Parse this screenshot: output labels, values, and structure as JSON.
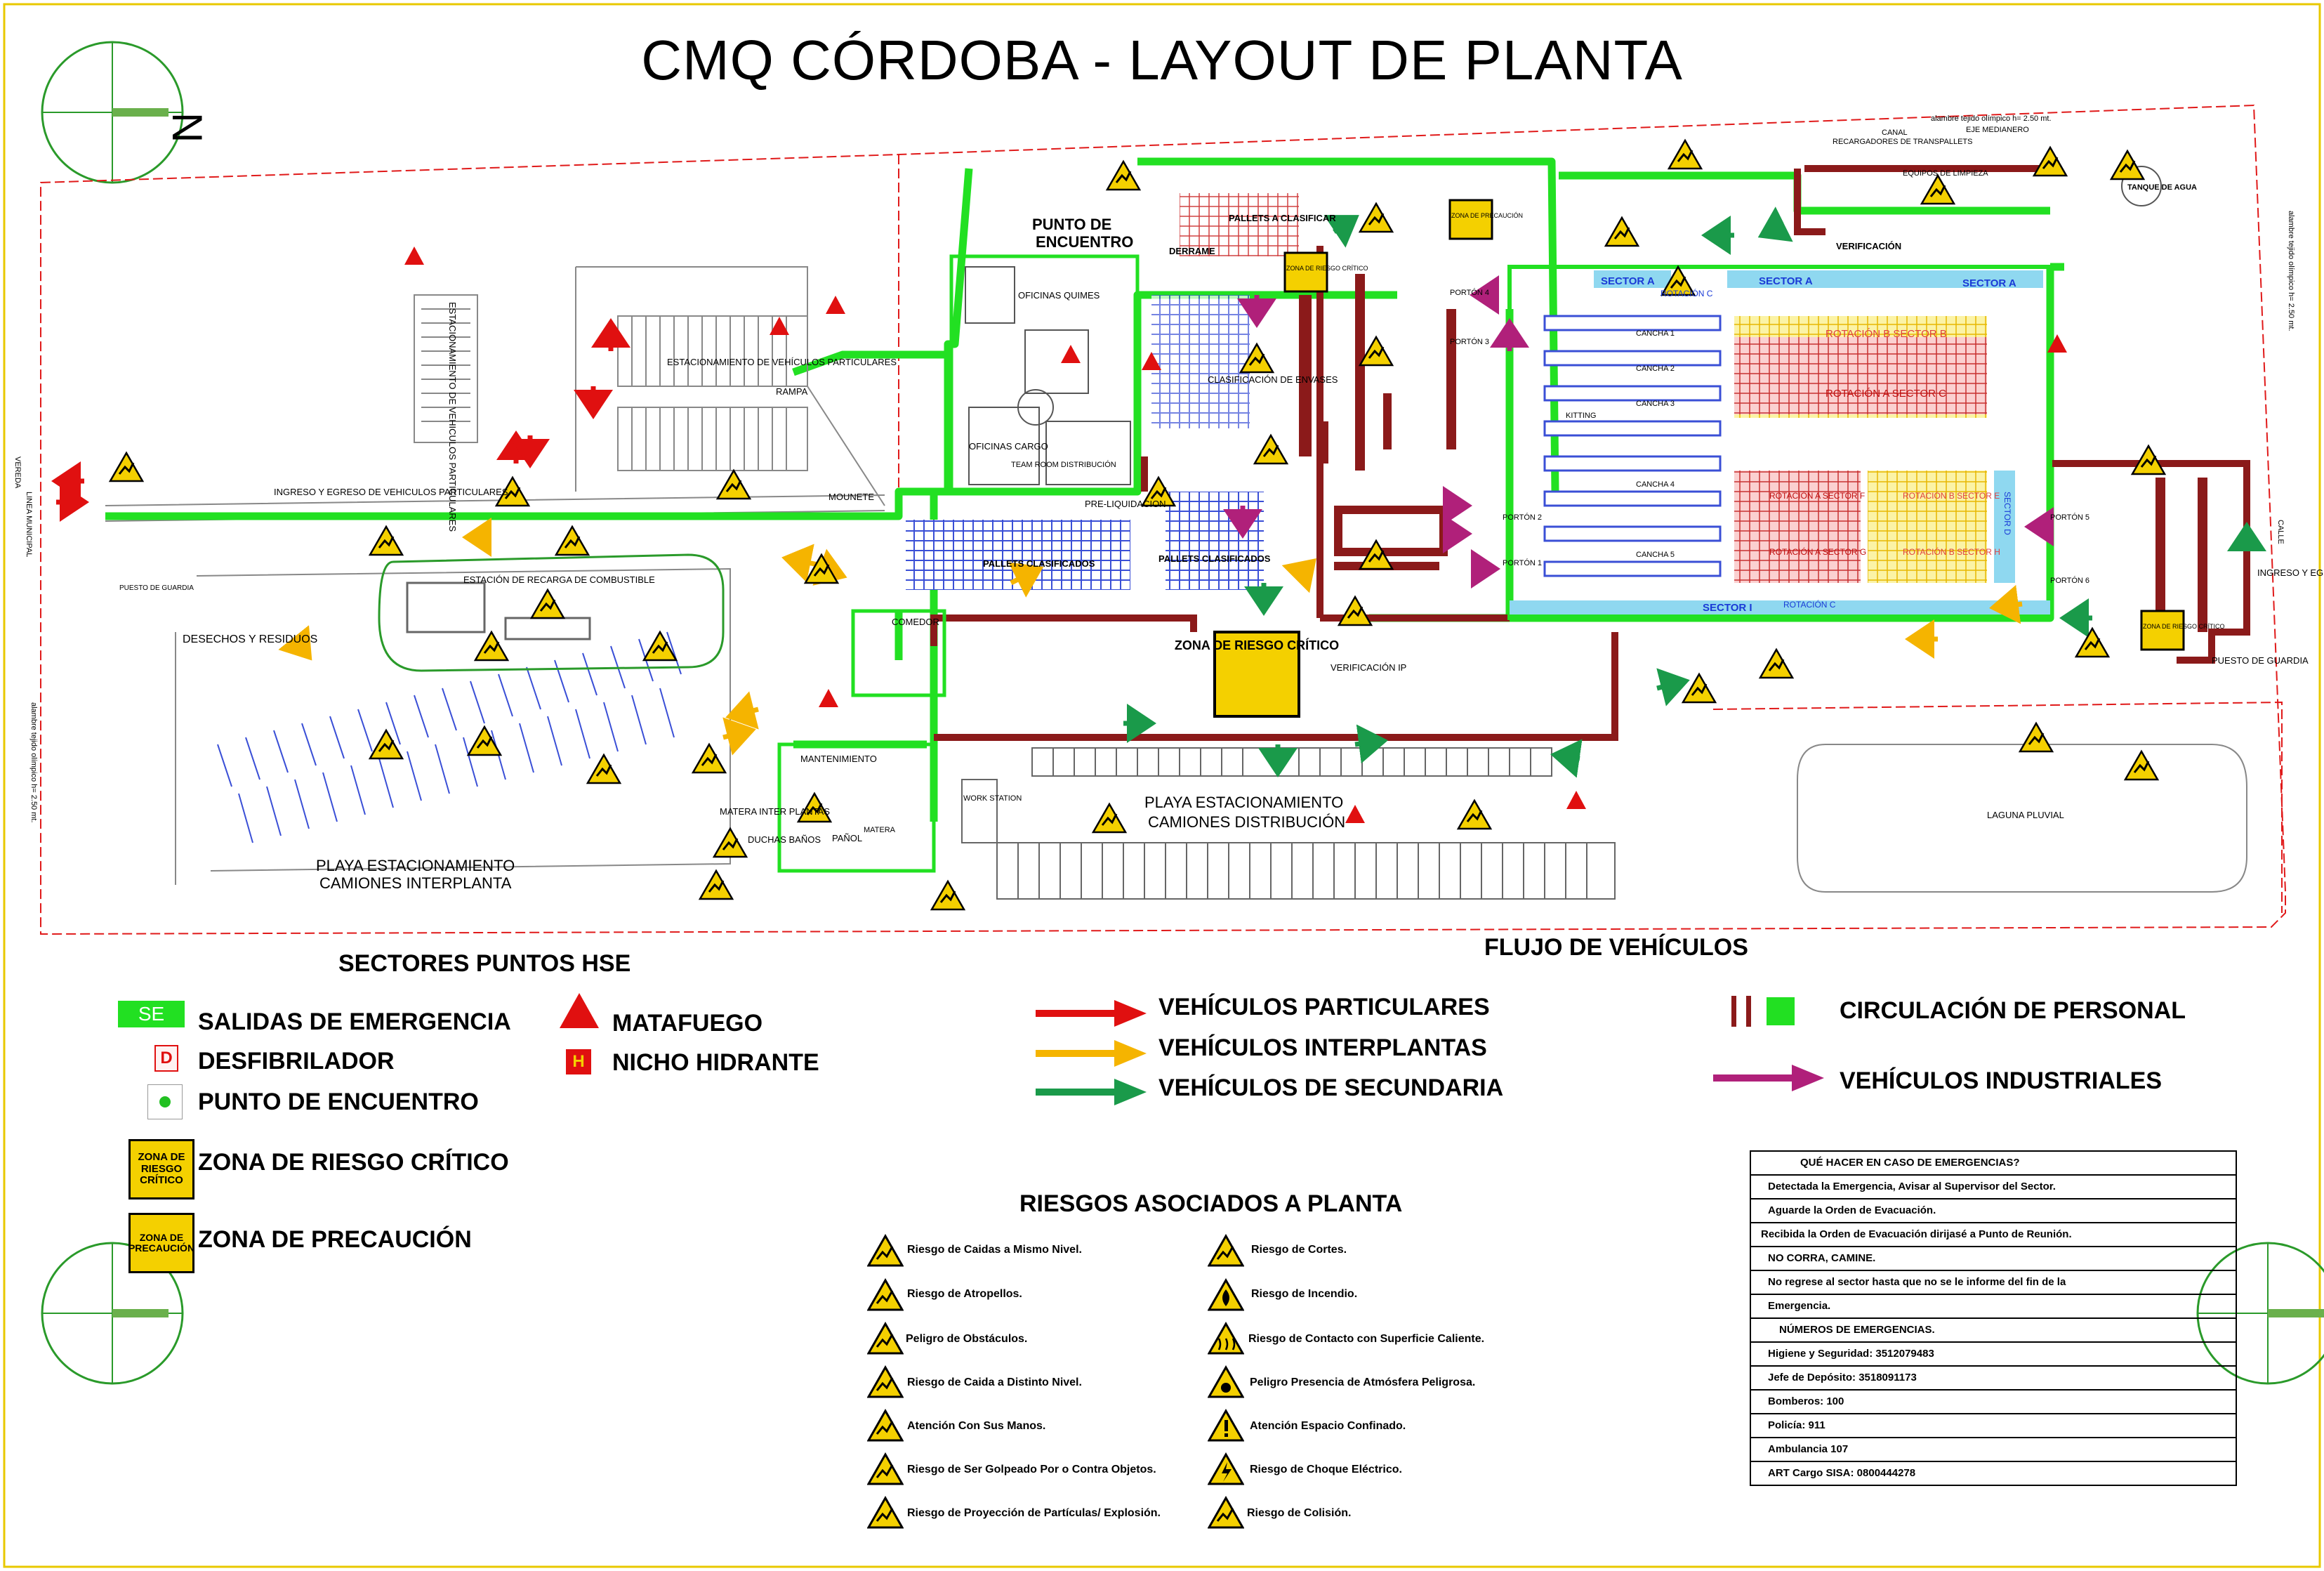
{
  "title": "CMQ CÓRDOBA - LAYOUT DE PLANTA",
  "north_label": "N",
  "colors": {
    "boundary": "#e01a1a",
    "emergency_exit": "#22e022",
    "walls": "#8b1a1a",
    "particulares": "#e01010",
    "interplantas": "#f5b400",
    "secundaria": "#1a9a4a",
    "industriales": "#b0207a",
    "risk_zone": "#e8c800",
    "pallets": "#3a4fd6",
    "rotacion": "#f06060",
    "sector_b": "#f4e96a"
  },
  "map": {
    "boundary_notes": {
      "top": "alambre tejido olímpico h= 2.50 mt.",
      "medianero": "EJE MEDIANERO",
      "canal": "CANAL",
      "right": "alambre tejido olímpico h= 2.50 mt.",
      "left": "alambre tejido olímpico h= 2.50 mt.",
      "calle": "CALLE",
      "linea_municipal": "LINEA MUNICIPAL",
      "vereda": "VEREDA"
    },
    "labels": {
      "estac_particulares_v": "ESTACIONAMIENTO DE VEHICULOS PARTICULARES",
      "estac_particulares": "ESTACIONAMIENTO DE VEHÍCULOS PARTICULARES",
      "rampa": "RAMPA",
      "ingreso_egreso": "INGRESO Y EGRESO DE VEHICULOS PARTICULARES",
      "mounete": "MOUNETE",
      "puesto_guardia_left": "PUESTO DE GUARDIA",
      "estacion_recarga": "ESTACIÓN DE RECARGA DE COMBUSTIBLE",
      "desechos": "DESECHOS Y RESIDUOS",
      "playa_interplanta_1": "PLAYA ESTACIONAMIENTO",
      "playa_interplanta_2": "CAMIONES INTERPLANTA",
      "punto_encuentro_1": "PUNTO DE",
      "punto_encuentro_2": "ENCUENTRO",
      "oficinas_quimes": "OFICINAS QUIMES",
      "oficinas_cargo": "OFICINAS CARGO",
      "team_room": "TEAM ROOM DISTRIBUCIÓN",
      "pre_liquidacion": "PRE-LIQUIDACION",
      "pallets_clasificados_1": "PALLETS CLASIFICADOS",
      "pallets_clasificados_2": "PALLETS CLASIFICADOS",
      "comedor": "COMEDOR",
      "mantenimiento": "MANTENIMIENTO",
      "matera_inter": "MATERA INTER PLANTAS",
      "duchas": "DUCHAS BAÑOS",
      "panol": "PAÑOL",
      "matera": "MATERA",
      "work_station": "WORK STATION",
      "playa_distribucion_1": "PLAYA ESTACIONAMIENTO",
      "playa_distribucion_2": "CAMIONES DISTRIBUCIÓN",
      "zona_riesgo_big": "ZONA DE RIESGO CRÍTICO",
      "verificacion_ip": "VERIFICACIÓN IP",
      "pallets_a_clasificar": "PALLETS A CLASIFICAR",
      "derrame": "DERRAME",
      "clasificacion_envases": "CLASIFICACIÓN DE ENVASES",
      "zona_precaucion_small": "ZONA DE PRECAUCIÓN",
      "zona_riesgo_small": "ZONA DE RIESGO CRÍTICO",
      "portones": [
        "PORTÓN 4",
        "PORTÓN 3",
        "PORTÓN 2",
        "PORTÓN 1",
        "PORTÓN 5",
        "PORTÓN 6"
      ],
      "canchas": [
        "CANCHA 1",
        "CANCHA 2",
        "CANCHA 3",
        "CANCHA 4",
        "CANCHA 5"
      ],
      "kitting": "KITTING",
      "sector_a": "SECTOR A",
      "sector_a2": "SECTOR A",
      "sector_a3": "SECTOR A",
      "rotacion_c_top": "ROTACIÓN C",
      "rotacion_c_bottom": "ROTACIÓN C",
      "sector_b": "ROTACIÓN B SECTOR B",
      "sector_c": "ROTACIÓN A SECTOR C",
      "sector_f": "ROTACIÓN A SECTOR F",
      "sector_e": "ROTACIÓN B SECTOR E",
      "sector_g": "ROTACIÓN A SECTOR G",
      "sector_h": "ROTACIÓN B SECTOR H",
      "sector_d": "SECTOR D",
      "sector_i": "SECTOR I",
      "recargadores": "RECARGADORES DE TRANSPALLETS",
      "equipos_limpieza": "EQUIPOS DE LIMPIEZA",
      "verificacion": "VERIFICACIÓN",
      "tanque_agua": "TANQUE DE AGUA",
      "ingreso_egreso_right": "INGRESO Y EGRESO",
      "puesto_guardia_right": "PUESTO DE GUARDIA",
      "laguna": "LAGUNA PLUVIAL",
      "zona_riesgo_right": "ZONA DE RIESGO CRÍTICO"
    }
  },
  "legend_hse": {
    "title": "SECTORES PUNTOS HSE",
    "se_badge": "SE",
    "d_badge": "D",
    "h_badge": "H",
    "salidas": "SALIDAS DE EMERGENCIA",
    "desfibrilador": "DESFIBRILADOR",
    "punto_encuentro": "PUNTO DE ENCUENTRO",
    "matafuego": "MATAFUEGO",
    "nicho": "NICHO HIDRANTE",
    "zona_riesgo_badge": "ZONA DE RIESGO CRÍTICO",
    "zona_riesgo": "ZONA DE RIESGO CRÍTICO",
    "zona_precaucion_badge": "ZONA DE PRECAUCIÓN",
    "zona_precaucion": "ZONA DE PRECAUCIÓN"
  },
  "legend_flow": {
    "title": "FLUJO DE VEHÍCULOS",
    "particulares": "VEHÍCULOS PARTICULARES",
    "interplantas": "VEHÍCULOS INTERPLANTAS",
    "secundaria": "VEHÍCULOS DE SECUNDARIA",
    "personal": "CIRCULACIÓN DE PERSONAL",
    "industriales": "VEHÍCULOS INDUSTRIALES"
  },
  "risks": {
    "title": "RIESGOS ASOCIADOS A PLANTA",
    "left": [
      "Riesgo de Caidas a Mismo Nivel.",
      "Riesgo de Atropellos.",
      "Peligro de Obstáculos.",
      "Riesgo de Caida a Distinto Nivel.",
      "Atención Con Sus Manos.",
      "Riesgo de Ser Golpeado Por o Contra Objetos.",
      "Riesgo de Proyección de Partículas/ Explosión."
    ],
    "right": [
      "Riesgo de Cortes.",
      "Riesgo de Incendio.",
      "Riesgo de Contacto con Superficie Caliente.",
      "Peligro Presencia de Atmósfera Peligrosa.",
      "Atención Espacio Confinado.",
      "Riesgo de Choque Eléctrico.",
      "Riesgo de Colisión."
    ]
  },
  "emergency": {
    "rows": [
      "QUÉ HACER EN CASO DE EMERGENCIAS?",
      "Detectada la Emergencia, Avisar al Supervisor del Sector.",
      "Aguarde la Orden de Evacuación.",
      "Recibida la Orden de Evacuación dirijasé a Punto de Reunión.",
      "NO CORRA, CAMINE.",
      "No regrese al sector hasta que no se le informe del fin de la",
      "Emergencia.",
      "NÚMEROS DE EMERGENCIAS.",
      "Higiene y Seguridad:  3512079483",
      "Jefe de Depósito: 3518091173",
      "Bomberos: 100",
      "Policía: 911",
      "Ambulancia 107",
      "ART Cargo SISA: 0800444278"
    ]
  }
}
